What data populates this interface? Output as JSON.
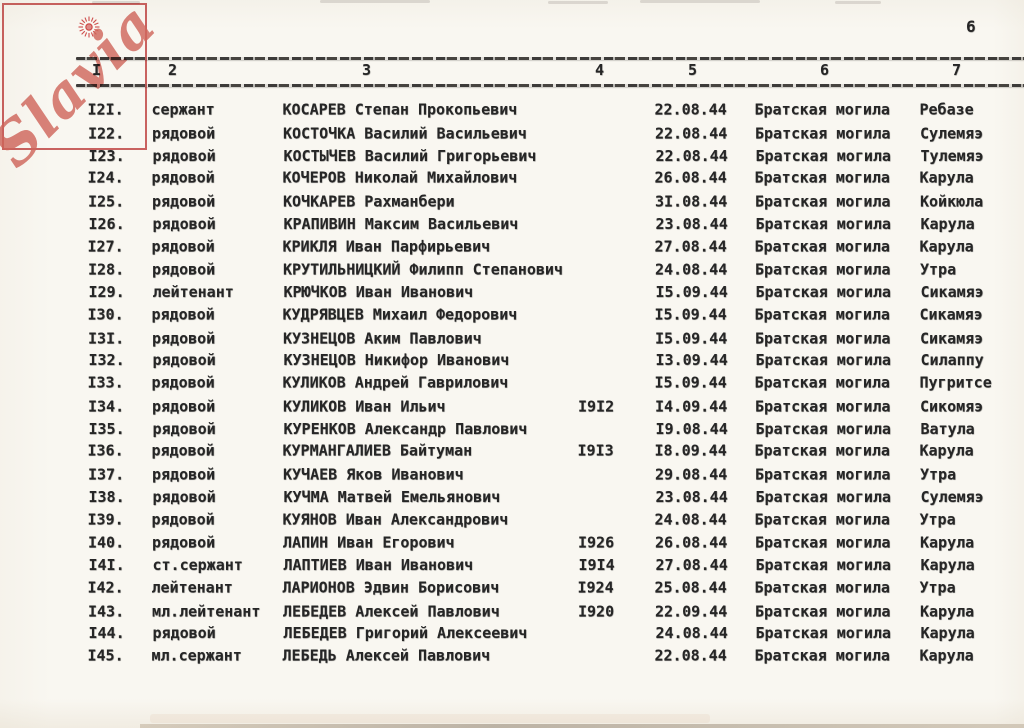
{
  "page": {
    "number": "6"
  },
  "watermark": {
    "text": "Slavia",
    "symbol": "sun-icon",
    "border_color": "#c64a4a",
    "text_color": "#d66a62"
  },
  "colors": {
    "paper": "#f9f7f1",
    "ink": "#262626"
  },
  "table": {
    "column_headers": [
      "I",
      "2",
      "3",
      "4",
      "5",
      "6",
      "7"
    ],
    "rows": [
      {
        "no": "I2I.",
        "rank": "сержант",
        "name": "КОСАРЕВ Степан Прокопьевич",
        "born": "",
        "date": "22.08.44",
        "grave": "Братская могила",
        "place": "Ребазе"
      },
      {
        "no": "I22.",
        "rank": "рядовой",
        "name": "КОСТОЧКА Василий Васильевич",
        "born": "",
        "date": "22.08.44",
        "grave": "Братская могила",
        "place": "Сулемяэ"
      },
      {
        "no": "I23.",
        "rank": "рядовой",
        "name": "КОСТЫЧЕВ Василий Григорьевич",
        "born": "",
        "date": "22.08.44",
        "grave": "Братская могила",
        "place": "Тулемяэ"
      },
      {
        "no": "I24.",
        "rank": "рядовой",
        "name": "КОЧЕРОВ Николай Михайлович",
        "born": "",
        "date": "26.08.44",
        "grave": "Братская могила",
        "place": "Карула"
      },
      {
        "no": "I25.",
        "rank": "рядовой",
        "name": "КОЧКАРЕВ Рахманбери",
        "born": "",
        "date": "3I.08.44",
        "grave": "Братская могила",
        "place": "Койкюла"
      },
      {
        "no": "I26.",
        "rank": "рядовой",
        "name": "КРАПИВИН Максим Васильевич",
        "born": "",
        "date": "23.08.44",
        "grave": "Братская могила",
        "place": "Карула"
      },
      {
        "no": "I27.",
        "rank": "рядовой",
        "name": "КРИКЛЯ Иван Парфирьевич",
        "born": "",
        "date": "27.08.44",
        "grave": "Братская могила",
        "place": "Карула"
      },
      {
        "no": "I28.",
        "rank": "рядовой",
        "name": "КРУТИЛЬНИЦКИЙ Филипп Степанович",
        "born": "",
        "date": "24.08.44",
        "grave": "Братская могила",
        "place": "Утра"
      },
      {
        "no": "I29.",
        "rank": "лейтенант",
        "name": "КРЮЧКОВ Иван Иванович",
        "born": "",
        "date": "I5.09.44",
        "grave": "Братская могила",
        "place": "Сикамяэ"
      },
      {
        "no": "I30.",
        "rank": "рядовой",
        "name": "КУДРЯВЦЕВ Михаил Федорович",
        "born": "",
        "date": "I5.09.44",
        "grave": "Братская могила",
        "place": "Сикамяэ"
      },
      {
        "no": "I3I.",
        "rank": "рядовой",
        "name": "КУЗНЕЦОВ Аким Павлович",
        "born": "",
        "date": "I5.09.44",
        "grave": "Братская могила",
        "place": "Сикамяэ"
      },
      {
        "no": "I32.",
        "rank": "рядовой",
        "name": "КУЗНЕЦОВ Никифор Иванович",
        "born": "",
        "date": "I3.09.44",
        "grave": "Братская могила",
        "place": "Силаппу"
      },
      {
        "no": "I33.",
        "rank": "рядовой",
        "name": "КУЛИКОВ Андрей Гаврилович",
        "born": "",
        "date": "I5.09.44",
        "grave": "Братская могила",
        "place": "Пугритсе"
      },
      {
        "no": "I34.",
        "rank": "рядовой",
        "name": "КУЛИКОВ Иван Ильич",
        "born": "I9I2",
        "date": "I4.09.44",
        "grave": "Братская могила",
        "place": "Сикомяэ"
      },
      {
        "no": "I35.",
        "rank": "рядовой",
        "name": "КУРЕНКОВ Александр Павлович",
        "born": "",
        "date": "I9.08.44",
        "grave": "Братская могила",
        "place": "Ватула"
      },
      {
        "no": "I36.",
        "rank": "рядовой",
        "name": "КУРМАНГАЛИЕВ Байтуман",
        "born": "I9I3",
        "date": "I8.09.44",
        "grave": "Братская могила",
        "place": "Карула"
      },
      {
        "no": "I37.",
        "rank": "рядовой",
        "name": "КУЧАЕВ Яков Иванович",
        "born": "",
        "date": "29.08.44",
        "grave": "Братская могила",
        "place": "Утра"
      },
      {
        "no": "I38.",
        "rank": "рядовой",
        "name": "КУЧМА Матвей Емельянович",
        "born": "",
        "date": "23.08.44",
        "grave": "Братская могила",
        "place": "Сулемяэ"
      },
      {
        "no": "I39.",
        "rank": "рядовой",
        "name": "КУЯНОВ Иван Александрович",
        "born": "",
        "date": "24.08.44",
        "grave": "Братская могила",
        "place": "Утра"
      },
      {
        "no": "I40.",
        "rank": "рядовой",
        "name": "ЛАПИН Иван Егорович",
        "born": "I926",
        "date": "26.08.44",
        "grave": "Братская могила",
        "place": "Карула"
      },
      {
        "no": "I4I.",
        "rank": "ст.сержант",
        "name": "ЛАПТИЕВ Иван Иванович",
        "born": "I9I4",
        "date": "27.08.44",
        "grave": "Братская могила",
        "place": "Карула"
      },
      {
        "no": "I42.",
        "rank": "лейтенант",
        "name": "ЛАРИОНОВ Эдвин Борисович",
        "born": "I924",
        "date": "25.08.44",
        "grave": "Братская могила",
        "place": "Утра"
      },
      {
        "no": "I43.",
        "rank": "мл.лейтенант",
        "name": "ЛЕБЕДЕВ Алексей Павлович",
        "born": "I920",
        "date": "22.09.44",
        "grave": "Братская могила",
        "place": "Карула"
      },
      {
        "no": "I44.",
        "rank": "рядовой",
        "name": "ЛЕБЕДЕВ Григорий Алексеевич",
        "born": "",
        "date": "24.08.44",
        "grave": "Братская могила",
        "place": "Карула"
      },
      {
        "no": "I45.",
        "rank": "мл.сержант",
        "name": "ЛЕБЕДЬ Алексей Павлович",
        "born": "",
        "date": "22.08.44",
        "grave": "Братская могила",
        "place": "Карула"
      }
    ]
  }
}
